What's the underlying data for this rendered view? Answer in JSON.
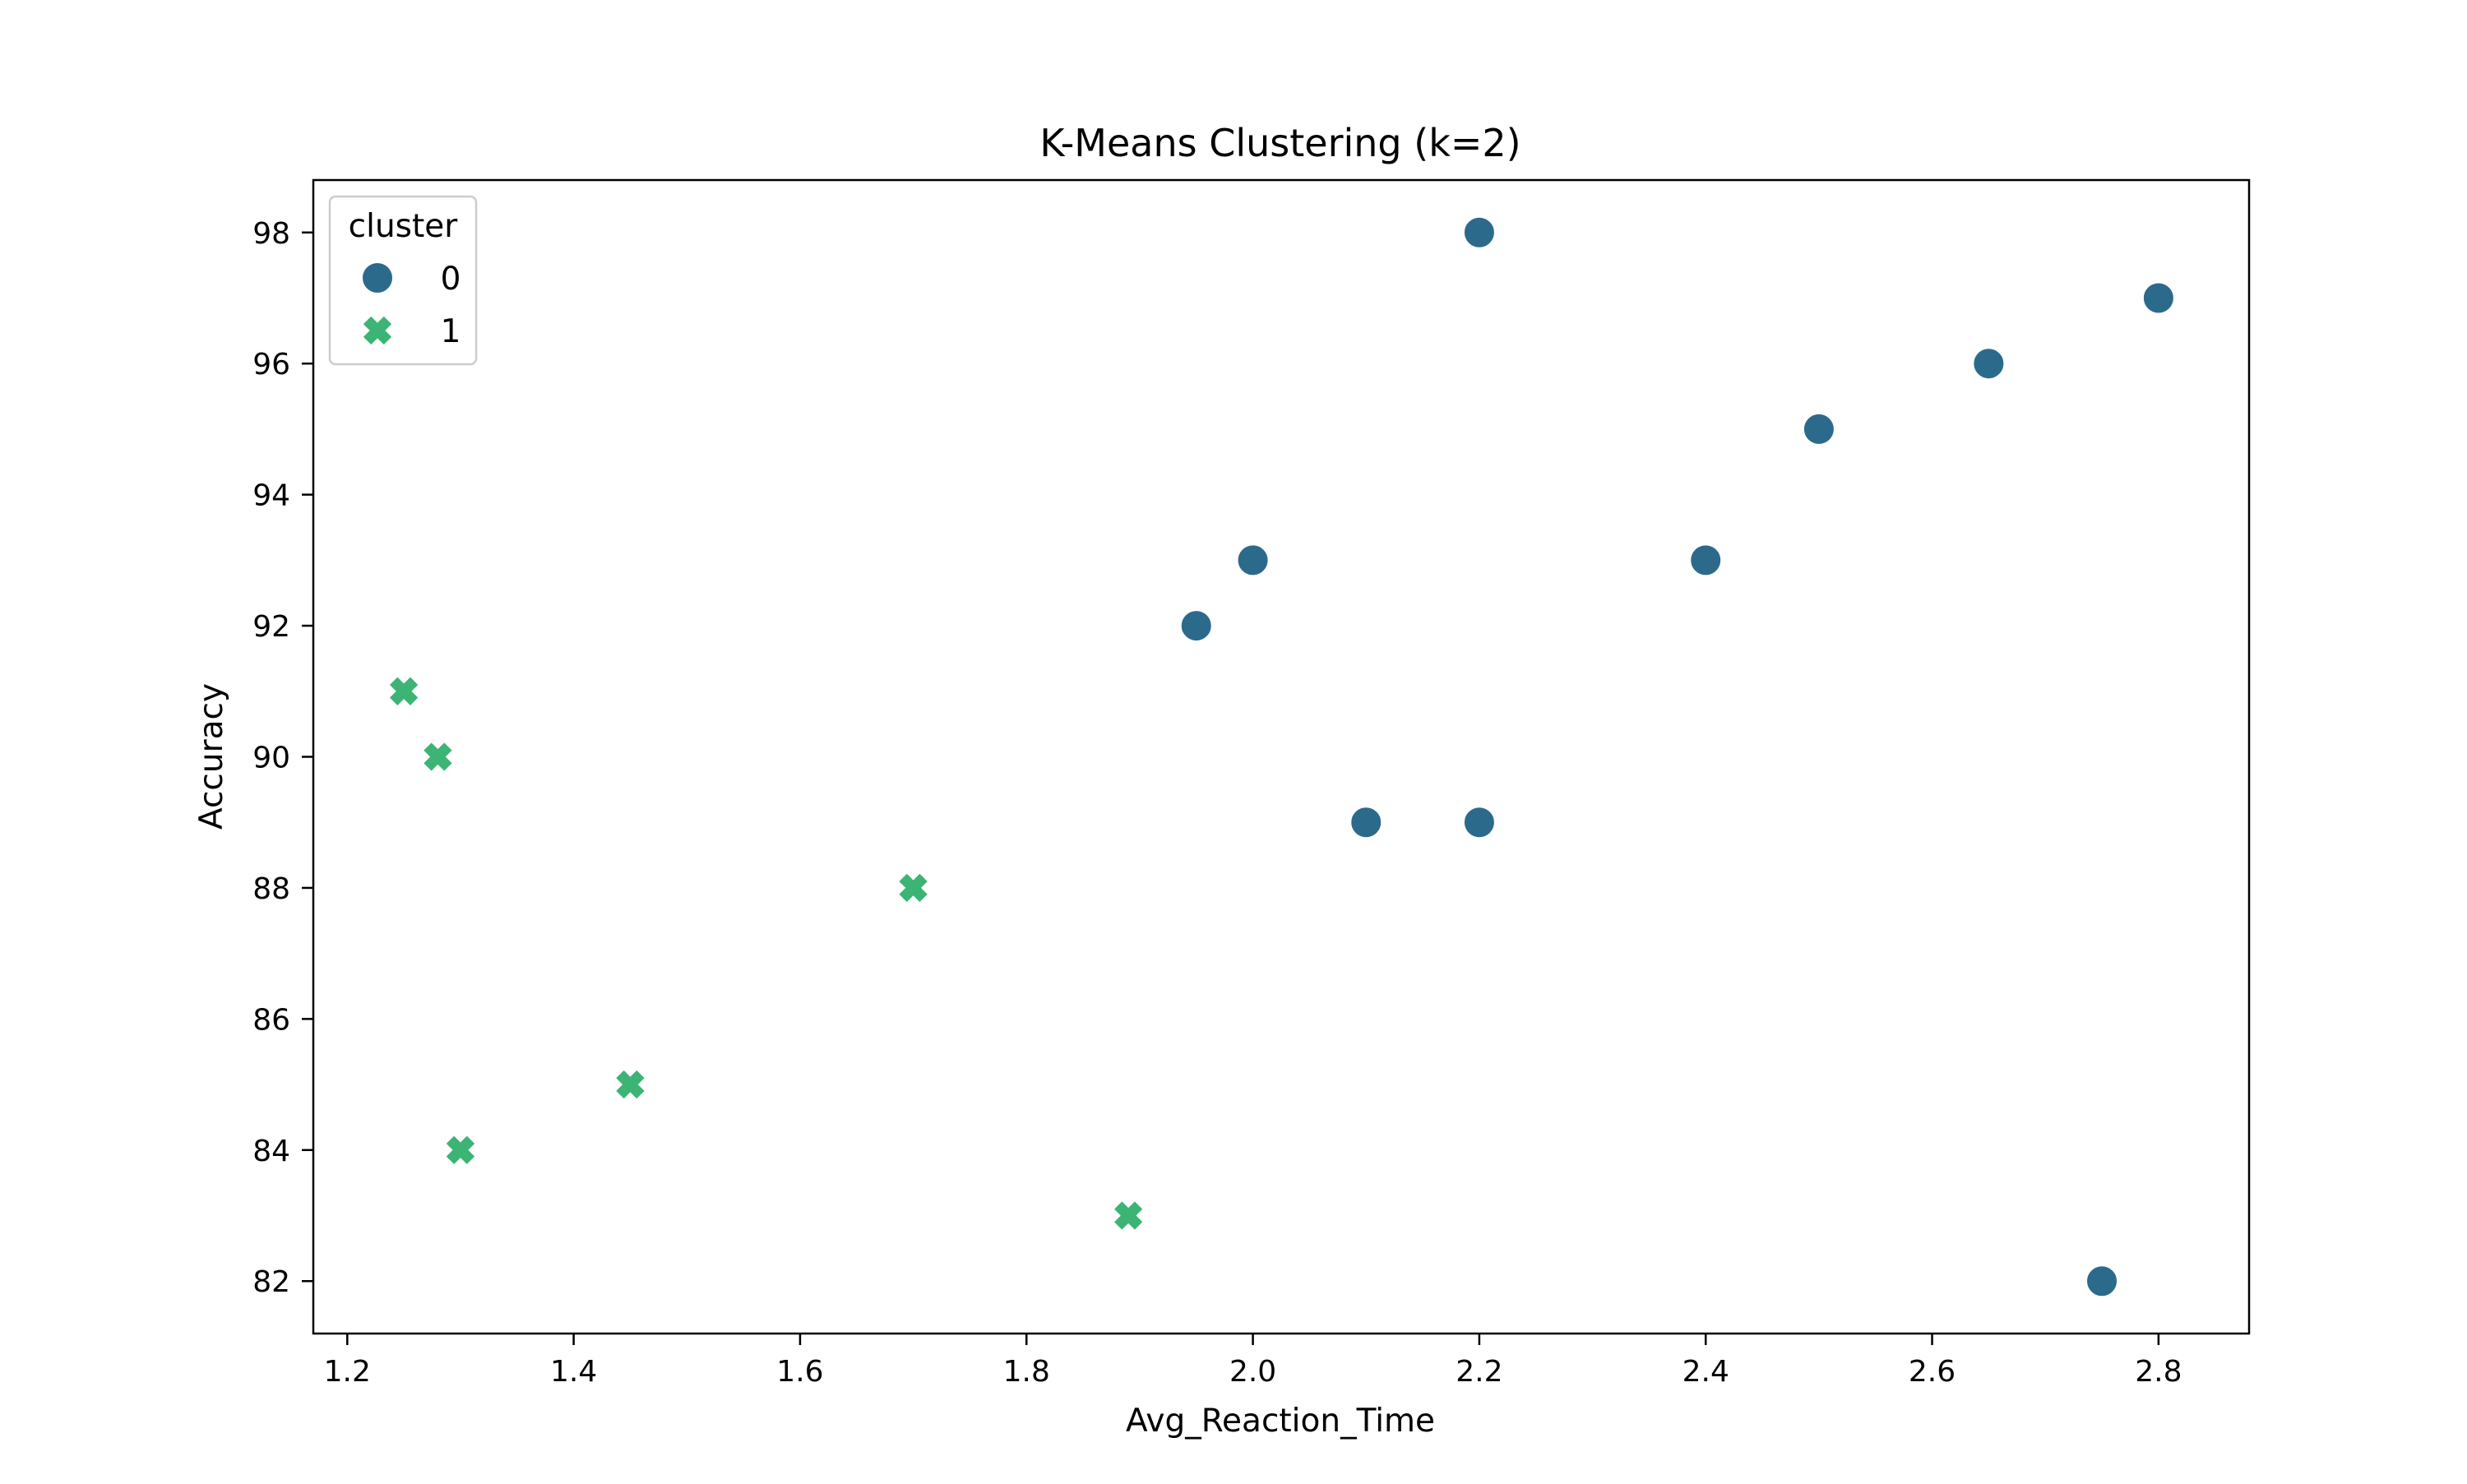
{
  "chart_data": {
    "type": "scatter",
    "title": "K-Means Clustering (k=2)",
    "xlabel": "Avg_Reaction_Time",
    "ylabel": "Accuracy",
    "xlim": [
      1.17,
      2.88
    ],
    "ylim": [
      81.2,
      98.8
    ],
    "xticks": [
      1.2,
      1.4,
      1.6,
      1.8,
      2.0,
      2.2,
      2.4,
      2.6,
      2.8
    ],
    "xtick_labels": [
      "1.2",
      "1.4",
      "1.6",
      "1.8",
      "2.0",
      "2.2",
      "2.4",
      "2.6",
      "2.8"
    ],
    "yticks": [
      82,
      84,
      86,
      88,
      90,
      92,
      94,
      96,
      98
    ],
    "ytick_labels": [
      "82",
      "84",
      "86",
      "88",
      "90",
      "92",
      "94",
      "96",
      "98"
    ],
    "grid": false,
    "legend": {
      "title": "cluster",
      "position": "upper-left"
    },
    "series": [
      {
        "name": "0",
        "marker": "circle",
        "color": "#2c6a8c",
        "points": [
          {
            "x": 2.2,
            "y": 98
          },
          {
            "x": 2.8,
            "y": 97
          },
          {
            "x": 2.65,
            "y": 96
          },
          {
            "x": 2.5,
            "y": 95
          },
          {
            "x": 2.0,
            "y": 93
          },
          {
            "x": 2.4,
            "y": 93
          },
          {
            "x": 1.95,
            "y": 92
          },
          {
            "x": 2.1,
            "y": 89
          },
          {
            "x": 2.2,
            "y": 89
          },
          {
            "x": 2.75,
            "y": 82
          }
        ]
      },
      {
        "name": "1",
        "marker": "x",
        "color": "#3bb474",
        "points": [
          {
            "x": 1.25,
            "y": 91
          },
          {
            "x": 1.28,
            "y": 90
          },
          {
            "x": 1.7,
            "y": 88
          },
          {
            "x": 1.45,
            "y": 85
          },
          {
            "x": 1.3,
            "y": 84
          },
          {
            "x": 1.89,
            "y": 83
          }
        ]
      }
    ]
  }
}
